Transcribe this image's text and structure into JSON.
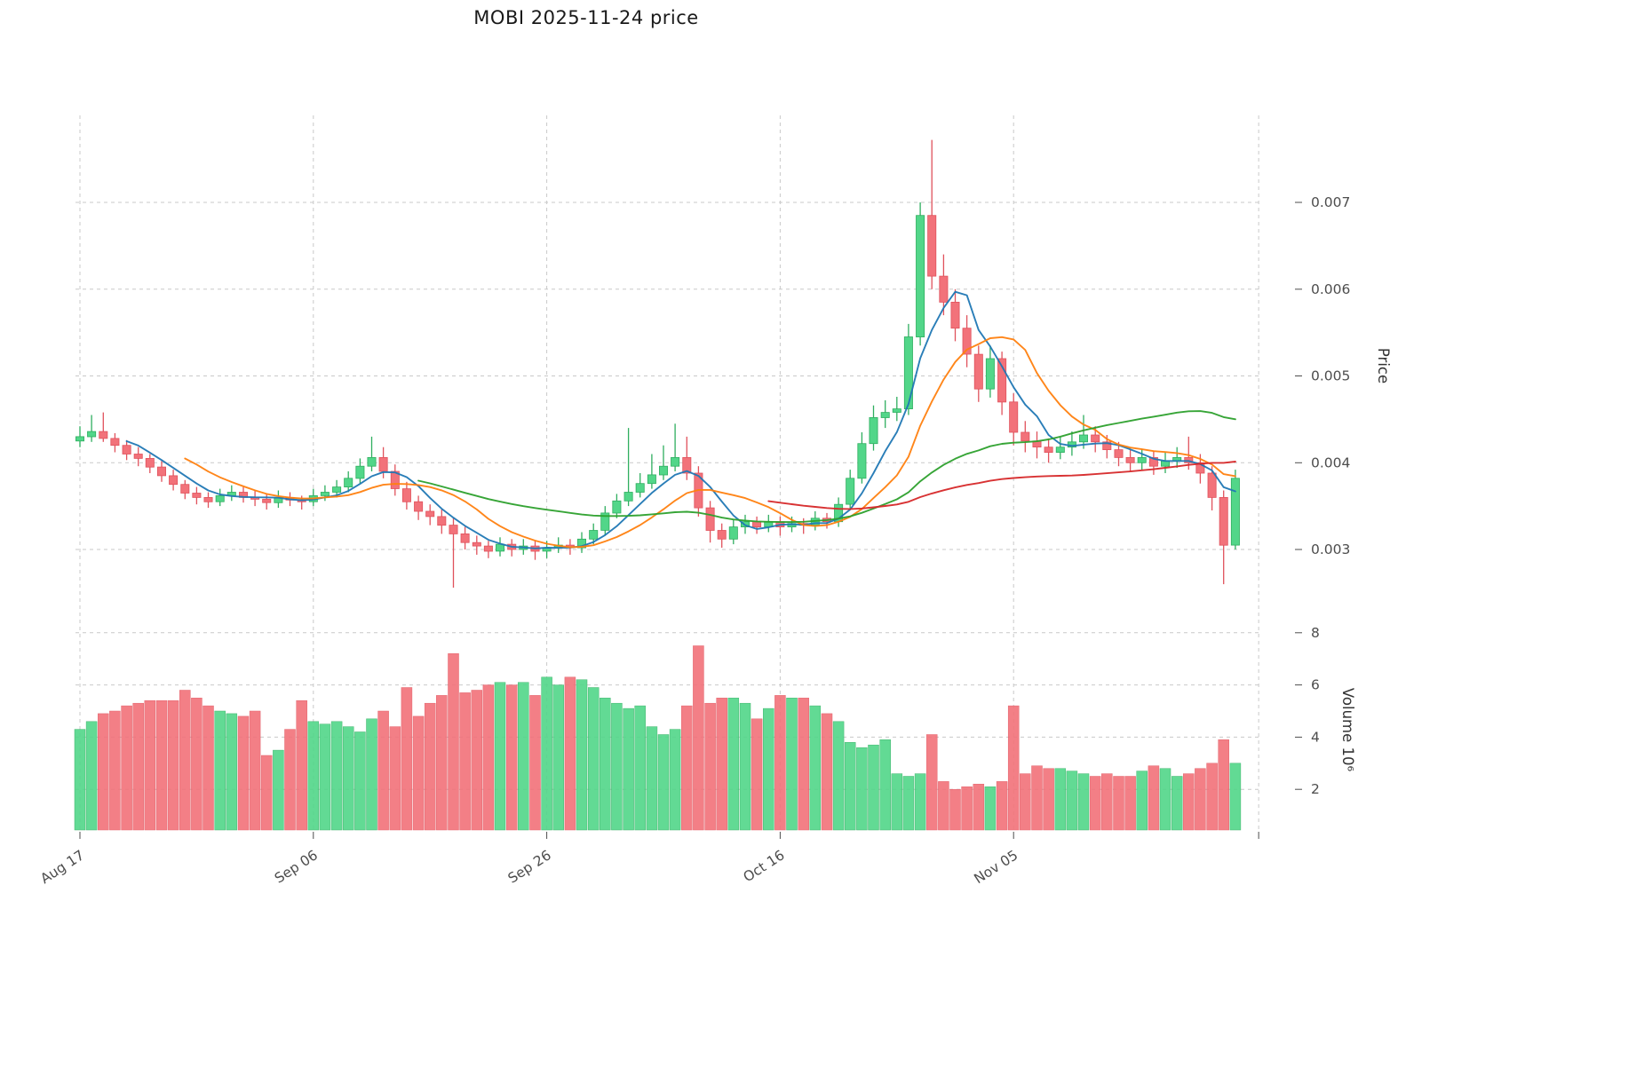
{
  "chart_data": {
    "type": "candlestick+volume",
    "title": "MOBI  2025-11-24  price",
    "price_axis": {
      "label": "Price",
      "tick_values": [
        0.003,
        0.004,
        0.005,
        0.006,
        0.007
      ],
      "tick_labels": [
        "0.003",
        "0.004",
        "0.005",
        "0.006",
        "0.007"
      ]
    },
    "volume_axis": {
      "label": "Volume  10⁶",
      "tick_values": [
        2,
        4,
        6,
        8
      ],
      "tick_labels": [
        "2",
        "4",
        "6",
        "8"
      ]
    },
    "x_axis": {
      "ticks": [
        {
          "index": 0,
          "label": "Aug 17"
        },
        {
          "index": 20,
          "label": "Sep 06"
        },
        {
          "index": 40,
          "label": "Sep 26"
        },
        {
          "index": 60,
          "label": "Oct 16"
        },
        {
          "index": 80,
          "label": "Nov 05"
        }
      ],
      "extra_grid_indices": [
        101
      ]
    },
    "legend_position": "none",
    "grid": true,
    "colors": {
      "up": "#52d689",
      "up_edge": "#2fae5f",
      "down": "#f2727a",
      "down_edge": "#e0525c",
      "grid": "#c9c9c9",
      "tick_text": "#4d4d4d",
      "axis_title_text": "#333333"
    },
    "moving_averages": [
      {
        "name": "MA5",
        "window": 5,
        "color": "#1f77b4"
      },
      {
        "name": "MA10",
        "window": 10,
        "color": "#ff7f0e"
      },
      {
        "name": "MA30",
        "window": 30,
        "color": "#2ca02c"
      },
      {
        "name": "MA60",
        "window": 60,
        "color": "#d62728"
      }
    ],
    "columns": [
      "date",
      "open",
      "high",
      "low",
      "close",
      "volume_millions"
    ],
    "candles": [
      [
        "2025-08-17",
        0.00425,
        0.00442,
        0.00418,
        0.0043,
        4.3
      ],
      [
        "2025-08-18",
        0.0043,
        0.00455,
        0.00424,
        0.00436,
        4.6
      ],
      [
        "2025-08-19",
        0.00436,
        0.00458,
        0.00424,
        0.00428,
        4.9
      ],
      [
        "2025-08-20",
        0.00428,
        0.00434,
        0.00412,
        0.0042,
        5.0
      ],
      [
        "2025-08-21",
        0.0042,
        0.00426,
        0.00403,
        0.0041,
        5.2
      ],
      [
        "2025-08-22",
        0.0041,
        0.00418,
        0.00396,
        0.00405,
        5.3
      ],
      [
        "2025-08-23",
        0.00405,
        0.0041,
        0.00388,
        0.00395,
        5.4
      ],
      [
        "2025-08-24",
        0.00395,
        0.00402,
        0.00378,
        0.00385,
        5.4
      ],
      [
        "2025-08-25",
        0.00385,
        0.00392,
        0.00368,
        0.00375,
        5.4
      ],
      [
        "2025-08-26",
        0.00375,
        0.0038,
        0.00358,
        0.00365,
        5.8
      ],
      [
        "2025-08-27",
        0.00365,
        0.00372,
        0.00352,
        0.0036,
        5.5
      ],
      [
        "2025-08-28",
        0.0036,
        0.00366,
        0.00348,
        0.00355,
        5.2
      ],
      [
        "2025-08-29",
        0.00355,
        0.0037,
        0.0035,
        0.00362,
        5.0
      ],
      [
        "2025-08-30",
        0.00362,
        0.00374,
        0.00356,
        0.00366,
        4.9
      ],
      [
        "2025-08-31",
        0.00366,
        0.00372,
        0.00354,
        0.0036,
        4.8
      ],
      [
        "2025-09-01",
        0.0036,
        0.00368,
        0.0035,
        0.00358,
        5.0
      ],
      [
        "2025-09-02",
        0.00358,
        0.00364,
        0.00346,
        0.00354,
        3.3
      ],
      [
        "2025-09-03",
        0.00354,
        0.00368,
        0.00348,
        0.0036,
        3.5
      ],
      [
        "2025-09-04",
        0.0036,
        0.00366,
        0.0035,
        0.00357,
        4.3
      ],
      [
        "2025-09-05",
        0.00357,
        0.00362,
        0.00346,
        0.00355,
        5.4
      ],
      [
        "2025-09-06",
        0.00355,
        0.0037,
        0.0035,
        0.00362,
        4.6
      ],
      [
        "2025-09-07",
        0.00362,
        0.00374,
        0.00356,
        0.00366,
        4.5
      ],
      [
        "2025-09-08",
        0.00366,
        0.0038,
        0.0036,
        0.00372,
        4.6
      ],
      [
        "2025-09-09",
        0.00372,
        0.0039,
        0.00366,
        0.00382,
        4.4
      ],
      [
        "2025-09-10",
        0.00382,
        0.00405,
        0.00376,
        0.00396,
        4.2
      ],
      [
        "2025-09-11",
        0.00396,
        0.0043,
        0.0039,
        0.00406,
        4.7
      ],
      [
        "2025-09-12",
        0.00406,
        0.00418,
        0.00382,
        0.0039,
        5.0
      ],
      [
        "2025-09-13",
        0.0039,
        0.00398,
        0.00362,
        0.0037,
        4.4
      ],
      [
        "2025-09-14",
        0.0037,
        0.00378,
        0.00346,
        0.00355,
        5.9
      ],
      [
        "2025-09-15",
        0.00355,
        0.00362,
        0.00334,
        0.00344,
        4.8
      ],
      [
        "2025-09-16",
        0.00344,
        0.00352,
        0.00328,
        0.00338,
        5.3
      ],
      [
        "2025-09-17",
        0.00338,
        0.00346,
        0.00318,
        0.00328,
        5.6
      ],
      [
        "2025-09-18",
        0.00328,
        0.00336,
        0.00256,
        0.00318,
        7.2
      ],
      [
        "2025-09-19",
        0.00318,
        0.00326,
        0.003,
        0.00308,
        5.7
      ],
      [
        "2025-09-20",
        0.00308,
        0.00316,
        0.00294,
        0.00304,
        5.8
      ],
      [
        "2025-09-21",
        0.00304,
        0.0031,
        0.0029,
        0.00298,
        6.0
      ],
      [
        "2025-09-22",
        0.00298,
        0.00314,
        0.00292,
        0.00306,
        6.1
      ],
      [
        "2025-09-23",
        0.00306,
        0.00312,
        0.00292,
        0.003,
        6.0
      ],
      [
        "2025-09-24",
        0.003,
        0.00312,
        0.00294,
        0.00304,
        6.1
      ],
      [
        "2025-09-25",
        0.00304,
        0.0031,
        0.00288,
        0.00298,
        5.6
      ],
      [
        "2025-09-26",
        0.00298,
        0.0031,
        0.0029,
        0.00302,
        6.3
      ],
      [
        "2025-09-27",
        0.00302,
        0.00314,
        0.00296,
        0.00305,
        6.0
      ],
      [
        "2025-09-28",
        0.00305,
        0.00312,
        0.00294,
        0.00302,
        6.3
      ],
      [
        "2025-09-29",
        0.00302,
        0.0032,
        0.00296,
        0.00312,
        6.2
      ],
      [
        "2025-09-30",
        0.00312,
        0.0033,
        0.00306,
        0.00322,
        5.9
      ],
      [
        "2025-10-01",
        0.00322,
        0.0035,
        0.00316,
        0.00342,
        5.5
      ],
      [
        "2025-10-02",
        0.00342,
        0.00364,
        0.00336,
        0.00356,
        5.3
      ],
      [
        "2025-10-03",
        0.00356,
        0.0044,
        0.0035,
        0.00366,
        5.1
      ],
      [
        "2025-10-04",
        0.00366,
        0.00388,
        0.0036,
        0.00376,
        5.2
      ],
      [
        "2025-10-05",
        0.00376,
        0.0041,
        0.0037,
        0.00386,
        4.4
      ],
      [
        "2025-10-06",
        0.00386,
        0.0042,
        0.0038,
        0.00396,
        4.1
      ],
      [
        "2025-10-07",
        0.00396,
        0.00445,
        0.0039,
        0.00406,
        4.3
      ],
      [
        "2025-10-08",
        0.00406,
        0.0043,
        0.0038,
        0.00388,
        5.2
      ],
      [
        "2025-10-09",
        0.00388,
        0.00396,
        0.00338,
        0.00348,
        7.5
      ],
      [
        "2025-10-10",
        0.00348,
        0.00356,
        0.00308,
        0.00322,
        5.3
      ],
      [
        "2025-10-11",
        0.00322,
        0.0033,
        0.00302,
        0.00312,
        5.5
      ],
      [
        "2025-10-12",
        0.00312,
        0.00334,
        0.00306,
        0.00326,
        5.5
      ],
      [
        "2025-10-13",
        0.00326,
        0.0034,
        0.00318,
        0.00332,
        5.3
      ],
      [
        "2025-10-14",
        0.00332,
        0.00338,
        0.00318,
        0.00326,
        4.7
      ],
      [
        "2025-10-15",
        0.00326,
        0.0034,
        0.0032,
        0.00332,
        5.1
      ],
      [
        "2025-10-16",
        0.00332,
        0.00338,
        0.00316,
        0.00326,
        5.6
      ],
      [
        "2025-10-17",
        0.00326,
        0.00338,
        0.0032,
        0.0033,
        5.5
      ],
      [
        "2025-10-18",
        0.0033,
        0.00336,
        0.00318,
        0.00328,
        5.5
      ],
      [
        "2025-10-19",
        0.00328,
        0.00344,
        0.00322,
        0.00336,
        5.2
      ],
      [
        "2025-10-20",
        0.00336,
        0.00342,
        0.00324,
        0.00332,
        4.9
      ],
      [
        "2025-10-21",
        0.00332,
        0.0036,
        0.00326,
        0.00352,
        4.6
      ],
      [
        "2025-10-22",
        0.00352,
        0.00392,
        0.00346,
        0.00382,
        3.8
      ],
      [
        "2025-10-23",
        0.00382,
        0.00435,
        0.00376,
        0.00422,
        3.6
      ],
      [
        "2025-10-24",
        0.00422,
        0.00466,
        0.00414,
        0.00452,
        3.7
      ],
      [
        "2025-10-25",
        0.00452,
        0.00472,
        0.0044,
        0.00458,
        3.9
      ],
      [
        "2025-10-26",
        0.00458,
        0.00476,
        0.00448,
        0.00462,
        2.6
      ],
      [
        "2025-10-27",
        0.00462,
        0.0056,
        0.00455,
        0.00545,
        2.5
      ],
      [
        "2025-10-28",
        0.00545,
        0.007,
        0.00535,
        0.00685,
        2.6
      ],
      [
        "2025-10-29",
        0.00685,
        0.00772,
        0.006,
        0.00615,
        4.1
      ],
      [
        "2025-10-30",
        0.00615,
        0.0064,
        0.0057,
        0.00585,
        2.3
      ],
      [
        "2025-10-31",
        0.00585,
        0.006,
        0.0054,
        0.00555,
        2.0
      ],
      [
        "2025-11-01",
        0.00555,
        0.0057,
        0.0051,
        0.00525,
        2.1
      ],
      [
        "2025-11-02",
        0.00525,
        0.00535,
        0.0047,
        0.00485,
        2.2
      ],
      [
        "2025-11-03",
        0.00485,
        0.00535,
        0.00475,
        0.0052,
        2.1
      ],
      [
        "2025-11-04",
        0.0052,
        0.00528,
        0.00455,
        0.0047,
        2.3
      ],
      [
        "2025-11-05",
        0.0047,
        0.0048,
        0.0042,
        0.00435,
        5.2
      ],
      [
        "2025-11-06",
        0.00435,
        0.00448,
        0.00412,
        0.00425,
        2.6
      ],
      [
        "2025-11-07",
        0.00425,
        0.00436,
        0.00405,
        0.00418,
        2.9
      ],
      [
        "2025-11-08",
        0.00418,
        0.00428,
        0.004,
        0.00412,
        2.8
      ],
      [
        "2025-11-09",
        0.00412,
        0.0043,
        0.00404,
        0.00418,
        2.8
      ],
      [
        "2025-11-10",
        0.00418,
        0.00436,
        0.00408,
        0.00424,
        2.7
      ],
      [
        "2025-11-11",
        0.00424,
        0.00455,
        0.00416,
        0.00432,
        2.6
      ],
      [
        "2025-11-12",
        0.00432,
        0.00442,
        0.00412,
        0.00424,
        2.5
      ],
      [
        "2025-11-13",
        0.00424,
        0.00432,
        0.00405,
        0.00415,
        2.6
      ],
      [
        "2025-11-14",
        0.00415,
        0.00424,
        0.00396,
        0.00406,
        2.5
      ],
      [
        "2025-11-15",
        0.00406,
        0.00416,
        0.0039,
        0.004,
        2.5
      ],
      [
        "2025-11-16",
        0.004,
        0.00416,
        0.00392,
        0.00406,
        2.7
      ],
      [
        "2025-11-17",
        0.00406,
        0.00414,
        0.00386,
        0.00396,
        2.9
      ],
      [
        "2025-11-18",
        0.00396,
        0.00412,
        0.00388,
        0.00402,
        2.8
      ],
      [
        "2025-11-19",
        0.00402,
        0.00418,
        0.00394,
        0.00406,
        2.5
      ],
      [
        "2025-11-20",
        0.00406,
        0.0043,
        0.00392,
        0.004,
        2.6
      ],
      [
        "2025-11-21",
        0.004,
        0.0041,
        0.00376,
        0.00388,
        2.8
      ],
      [
        "2025-11-22",
        0.00388,
        0.00396,
        0.00345,
        0.0036,
        3.0
      ],
      [
        "2025-11-23",
        0.0036,
        0.00368,
        0.0026,
        0.00305,
        3.9
      ],
      [
        "2025-11-24",
        0.00305,
        0.00392,
        0.003,
        0.00382,
        3.0
      ]
    ]
  }
}
